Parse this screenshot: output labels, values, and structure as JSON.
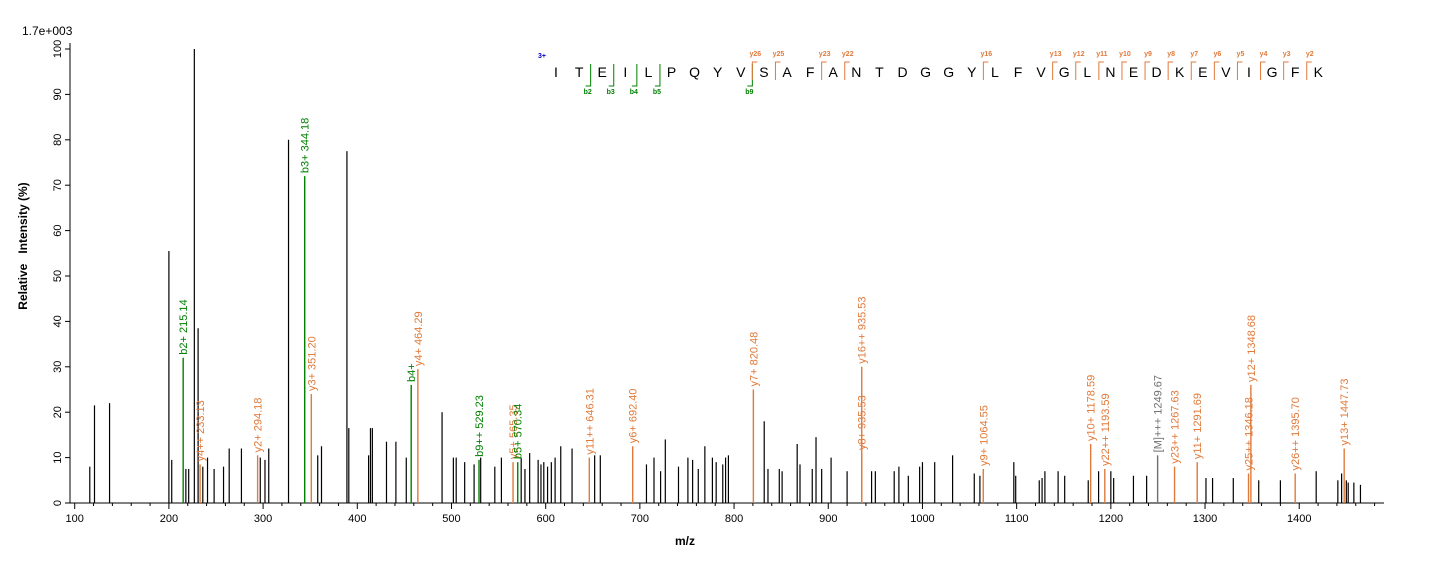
{
  "chart_data": {
    "type": "bar",
    "title": "",
    "xlabel": "m/z",
    "ylabel": "Relative   Intensity (%)",
    "scale_label": "1.7e+003",
    "xlim": [
      95,
      1490
    ],
    "ylim": [
      0,
      100
    ],
    "x_ticks": [
      100,
      200,
      300,
      400,
      500,
      600,
      700,
      800,
      900,
      1000,
      1100,
      1200,
      1300,
      1400
    ],
    "y_ticks": [
      0,
      10,
      20,
      30,
      40,
      50,
      60,
      70,
      80,
      90,
      100
    ],
    "grid": false,
    "colors": {
      "unannotated": "#000000",
      "b_ion": "#008000",
      "y_ion": "#e07a3a",
      "precursor": "#707070",
      "charge": "#0000cc"
    },
    "peaks": [
      {
        "mz": 116,
        "i": 8
      },
      {
        "mz": 121,
        "i": 21.5
      },
      {
        "mz": 137,
        "i": 22
      },
      {
        "mz": 200,
        "i": 55.5
      },
      {
        "mz": 203,
        "i": 9.5
      },
      {
        "mz": 218,
        "i": 7.5
      },
      {
        "mz": 221,
        "i": 7.5
      },
      {
        "mz": 227,
        "i": 100
      },
      {
        "mz": 231,
        "i": 38.5
      },
      {
        "mz": 236,
        "i": 8
      },
      {
        "mz": 241,
        "i": 10
      },
      {
        "mz": 248,
        "i": 7.5
      },
      {
        "mz": 258,
        "i": 8
      },
      {
        "mz": 264,
        "i": 12
      },
      {
        "mz": 277,
        "i": 12
      },
      {
        "mz": 297,
        "i": 10
      },
      {
        "mz": 302,
        "i": 9.5
      },
      {
        "mz": 306,
        "i": 12
      },
      {
        "mz": 327,
        "i": 80
      },
      {
        "mz": 358,
        "i": 10.5
      },
      {
        "mz": 362,
        "i": 12.5
      },
      {
        "mz": 389,
        "i": 77.5
      },
      {
        "mz": 391,
        "i": 16.5
      },
      {
        "mz": 412,
        "i": 10.5
      },
      {
        "mz": 414,
        "i": 16.5
      },
      {
        "mz": 416,
        "i": 16.5
      },
      {
        "mz": 431,
        "i": 13.5
      },
      {
        "mz": 441,
        "i": 13.5
      },
      {
        "mz": 452,
        "i": 10
      },
      {
        "mz": 490,
        "i": 20
      },
      {
        "mz": 502,
        "i": 10
      },
      {
        "mz": 505,
        "i": 10
      },
      {
        "mz": 514,
        "i": 9
      },
      {
        "mz": 524,
        "i": 8.5
      },
      {
        "mz": 531,
        "i": 10
      },
      {
        "mz": 546,
        "i": 8
      },
      {
        "mz": 553,
        "i": 10
      },
      {
        "mz": 574,
        "i": 10
      },
      {
        "mz": 578,
        "i": 7.5
      },
      {
        "mz": 583,
        "i": 11
      },
      {
        "mz": 592,
        "i": 9.5
      },
      {
        "mz": 595,
        "i": 8.5
      },
      {
        "mz": 598,
        "i": 9
      },
      {
        "mz": 602,
        "i": 8
      },
      {
        "mz": 606,
        "i": 9
      },
      {
        "mz": 610,
        "i": 10
      },
      {
        "mz": 616,
        "i": 12.5
      },
      {
        "mz": 628,
        "i": 12
      },
      {
        "mz": 652,
        "i": 10.5
      },
      {
        "mz": 658,
        "i": 10.5
      },
      {
        "mz": 707,
        "i": 8.5
      },
      {
        "mz": 715,
        "i": 10
      },
      {
        "mz": 722,
        "i": 7
      },
      {
        "mz": 727,
        "i": 14
      },
      {
        "mz": 741,
        "i": 8
      },
      {
        "mz": 751,
        "i": 10
      },
      {
        "mz": 756,
        "i": 9.5
      },
      {
        "mz": 762,
        "i": 7.5
      },
      {
        "mz": 769,
        "i": 12.5
      },
      {
        "mz": 777,
        "i": 10
      },
      {
        "mz": 781,
        "i": 9
      },
      {
        "mz": 788,
        "i": 8.5
      },
      {
        "mz": 791,
        "i": 10
      },
      {
        "mz": 794,
        "i": 10.5
      },
      {
        "mz": 832,
        "i": 18
      },
      {
        "mz": 836,
        "i": 7.5
      },
      {
        "mz": 848,
        "i": 7.5
      },
      {
        "mz": 851,
        "i": 7
      },
      {
        "mz": 867,
        "i": 13
      },
      {
        "mz": 870,
        "i": 8.5
      },
      {
        "mz": 883,
        "i": 7.5
      },
      {
        "mz": 887,
        "i": 14.5
      },
      {
        "mz": 893,
        "i": 7.5
      },
      {
        "mz": 903,
        "i": 10
      },
      {
        "mz": 920,
        "i": 7
      },
      {
        "mz": 946,
        "i": 7
      },
      {
        "mz": 950,
        "i": 7
      },
      {
        "mz": 970,
        "i": 7
      },
      {
        "mz": 975,
        "i": 8
      },
      {
        "mz": 985,
        "i": 6
      },
      {
        "mz": 997,
        "i": 8
      },
      {
        "mz": 1000,
        "i": 9
      },
      {
        "mz": 1013,
        "i": 9
      },
      {
        "mz": 1032,
        "i": 10.5
      },
      {
        "mz": 1055,
        "i": 6.5
      },
      {
        "mz": 1061,
        "i": 6
      },
      {
        "mz": 1097,
        "i": 9
      },
      {
        "mz": 1099,
        "i": 6
      },
      {
        "mz": 1124,
        "i": 5
      },
      {
        "mz": 1127,
        "i": 5.5
      },
      {
        "mz": 1130,
        "i": 7
      },
      {
        "mz": 1144,
        "i": 7
      },
      {
        "mz": 1151,
        "i": 6
      },
      {
        "mz": 1176,
        "i": 5
      },
      {
        "mz": 1187,
        "i": 7
      },
      {
        "mz": 1200,
        "i": 7
      },
      {
        "mz": 1203,
        "i": 5.5
      },
      {
        "mz": 1224,
        "i": 6
      },
      {
        "mz": 1238,
        "i": 6
      },
      {
        "mz": 1301,
        "i": 5.5
      },
      {
        "mz": 1308,
        "i": 5.5
      },
      {
        "mz": 1330,
        "i": 5.5
      },
      {
        "mz": 1357,
        "i": 5
      },
      {
        "mz": 1380,
        "i": 5
      },
      {
        "mz": 1418,
        "i": 7
      },
      {
        "mz": 1441,
        "i": 5
      },
      {
        "mz": 1445,
        "i": 6.5
      },
      {
        "mz": 1450,
        "i": 5
      },
      {
        "mz": 1452,
        "i": 4.5
      },
      {
        "mz": 1458,
        "i": 4.5
      },
      {
        "mz": 1465,
        "i": 4
      }
    ],
    "annotated_peaks": [
      {
        "mz": 215.14,
        "i": 32,
        "label": "b2+ 215.14",
        "ion": "b"
      },
      {
        "mz": 233.13,
        "i": 8.5,
        "label": "y4++ 233.13",
        "ion": "y"
      },
      {
        "mz": 294.18,
        "i": 10.5,
        "label": "y2+ 294.18",
        "ion": "y"
      },
      {
        "mz": 344.18,
        "i": 72,
        "label": "b3+ 344.18",
        "ion": "b"
      },
      {
        "mz": 351.2,
        "i": 24,
        "label": "y3+ 351.20",
        "ion": "y"
      },
      {
        "mz": 457.23,
        "i": 26,
        "label": "b4+",
        "ion": "b"
      },
      {
        "mz": 464.29,
        "i": 29.5,
        "label": "y4+ 464.29",
        "ion": "y"
      },
      {
        "mz": 529.23,
        "i": 9.5,
        "label": "b9++ 529.23",
        "ion": "b"
      },
      {
        "mz": 565.35,
        "i": 9,
        "label": "y5+ 565.35",
        "ion": "y"
      },
      {
        "mz": 570.34,
        "i": 9,
        "label": "b5+ 570.34",
        "ion": "b"
      },
      {
        "mz": 646.31,
        "i": 10,
        "label": "y11++ 646.31",
        "ion": "y"
      },
      {
        "mz": 692.4,
        "i": 12.5,
        "label": "y6+ 692.40",
        "ion": "y"
      },
      {
        "mz": 820.48,
        "i": 25,
        "label": "y7+ 820.48",
        "ion": "y"
      },
      {
        "mz": 935.53,
        "i": 11,
        "label": "y8+ 935.53",
        "ion": "y"
      },
      {
        "mz": 935.53,
        "i": 30,
        "label": "y16++ 935.53",
        "ion": "y"
      },
      {
        "mz": 1064.55,
        "i": 7.5,
        "label": "y9+ 1064.55",
        "ion": "y"
      },
      {
        "mz": 1178.59,
        "i": 13,
        "label": "y10+ 1178.59",
        "ion": "y"
      },
      {
        "mz": 1193.59,
        "i": 7.5,
        "label": "y22++ 1193.59",
        "ion": "y"
      },
      {
        "mz": 1249.67,
        "i": 10.5,
        "label": "[M]+++ 1249.67",
        "ion": "precursor"
      },
      {
        "mz": 1267.63,
        "i": 8,
        "label": "y23++ 1267.63",
        "ion": "y"
      },
      {
        "mz": 1291.69,
        "i": 9,
        "label": "y11+ 1291.69",
        "ion": "y"
      },
      {
        "mz": 1346.18,
        "i": 6.5,
        "label": "y25++ 1346.18",
        "ion": "y"
      },
      {
        "mz": 1348.68,
        "i": 26,
        "label": "y12+ 1348.68",
        "ion": "y"
      },
      {
        "mz": 1395.7,
        "i": 6.5,
        "label": "y26++ 1395.70",
        "ion": "y"
      },
      {
        "mz": 1447.73,
        "i": 12,
        "label": "y13+ 1447.73",
        "ion": "y"
      }
    ],
    "sequence": {
      "charge": "3+",
      "residues": [
        "I",
        "T",
        "E",
        "I",
        "L",
        "P",
        "Q",
        "Y",
        "V",
        "S",
        "A",
        "F",
        "A",
        "N",
        "T",
        "D",
        "G",
        "G",
        "Y",
        "L",
        "F",
        "V",
        "G",
        "L",
        "N",
        "E",
        "D",
        "K",
        "E",
        "V",
        "I",
        "G",
        "F",
        "K"
      ],
      "b_ions": [
        {
          "after": 2,
          "label": "b2"
        },
        {
          "after": 3,
          "label": "b3"
        },
        {
          "after": 4,
          "label": "b4"
        },
        {
          "after": 5,
          "label": "b5"
        },
        {
          "after": 9,
          "label": "b9"
        }
      ],
      "y_ions": [
        {
          "before": 9,
          "label": "y26"
        },
        {
          "before": 10,
          "label": "y25"
        },
        {
          "before": 12,
          "label": "y23"
        },
        {
          "before": 13,
          "label": "y22"
        },
        {
          "before": 19,
          "label": "y16"
        },
        {
          "before": 22,
          "label": "y13"
        },
        {
          "before": 23,
          "label": "y12"
        },
        {
          "before": 24,
          "label": "y11"
        },
        {
          "before": 25,
          "label": "y10"
        },
        {
          "before": 26,
          "label": "y9"
        },
        {
          "before": 27,
          "label": "y8"
        },
        {
          "before": 28,
          "label": "y7"
        },
        {
          "before": 29,
          "label": "y6"
        },
        {
          "before": 30,
          "label": "y5"
        },
        {
          "before": 31,
          "label": "y4"
        },
        {
          "before": 32,
          "label": "y3"
        },
        {
          "before": 33,
          "label": "y2"
        }
      ]
    }
  }
}
